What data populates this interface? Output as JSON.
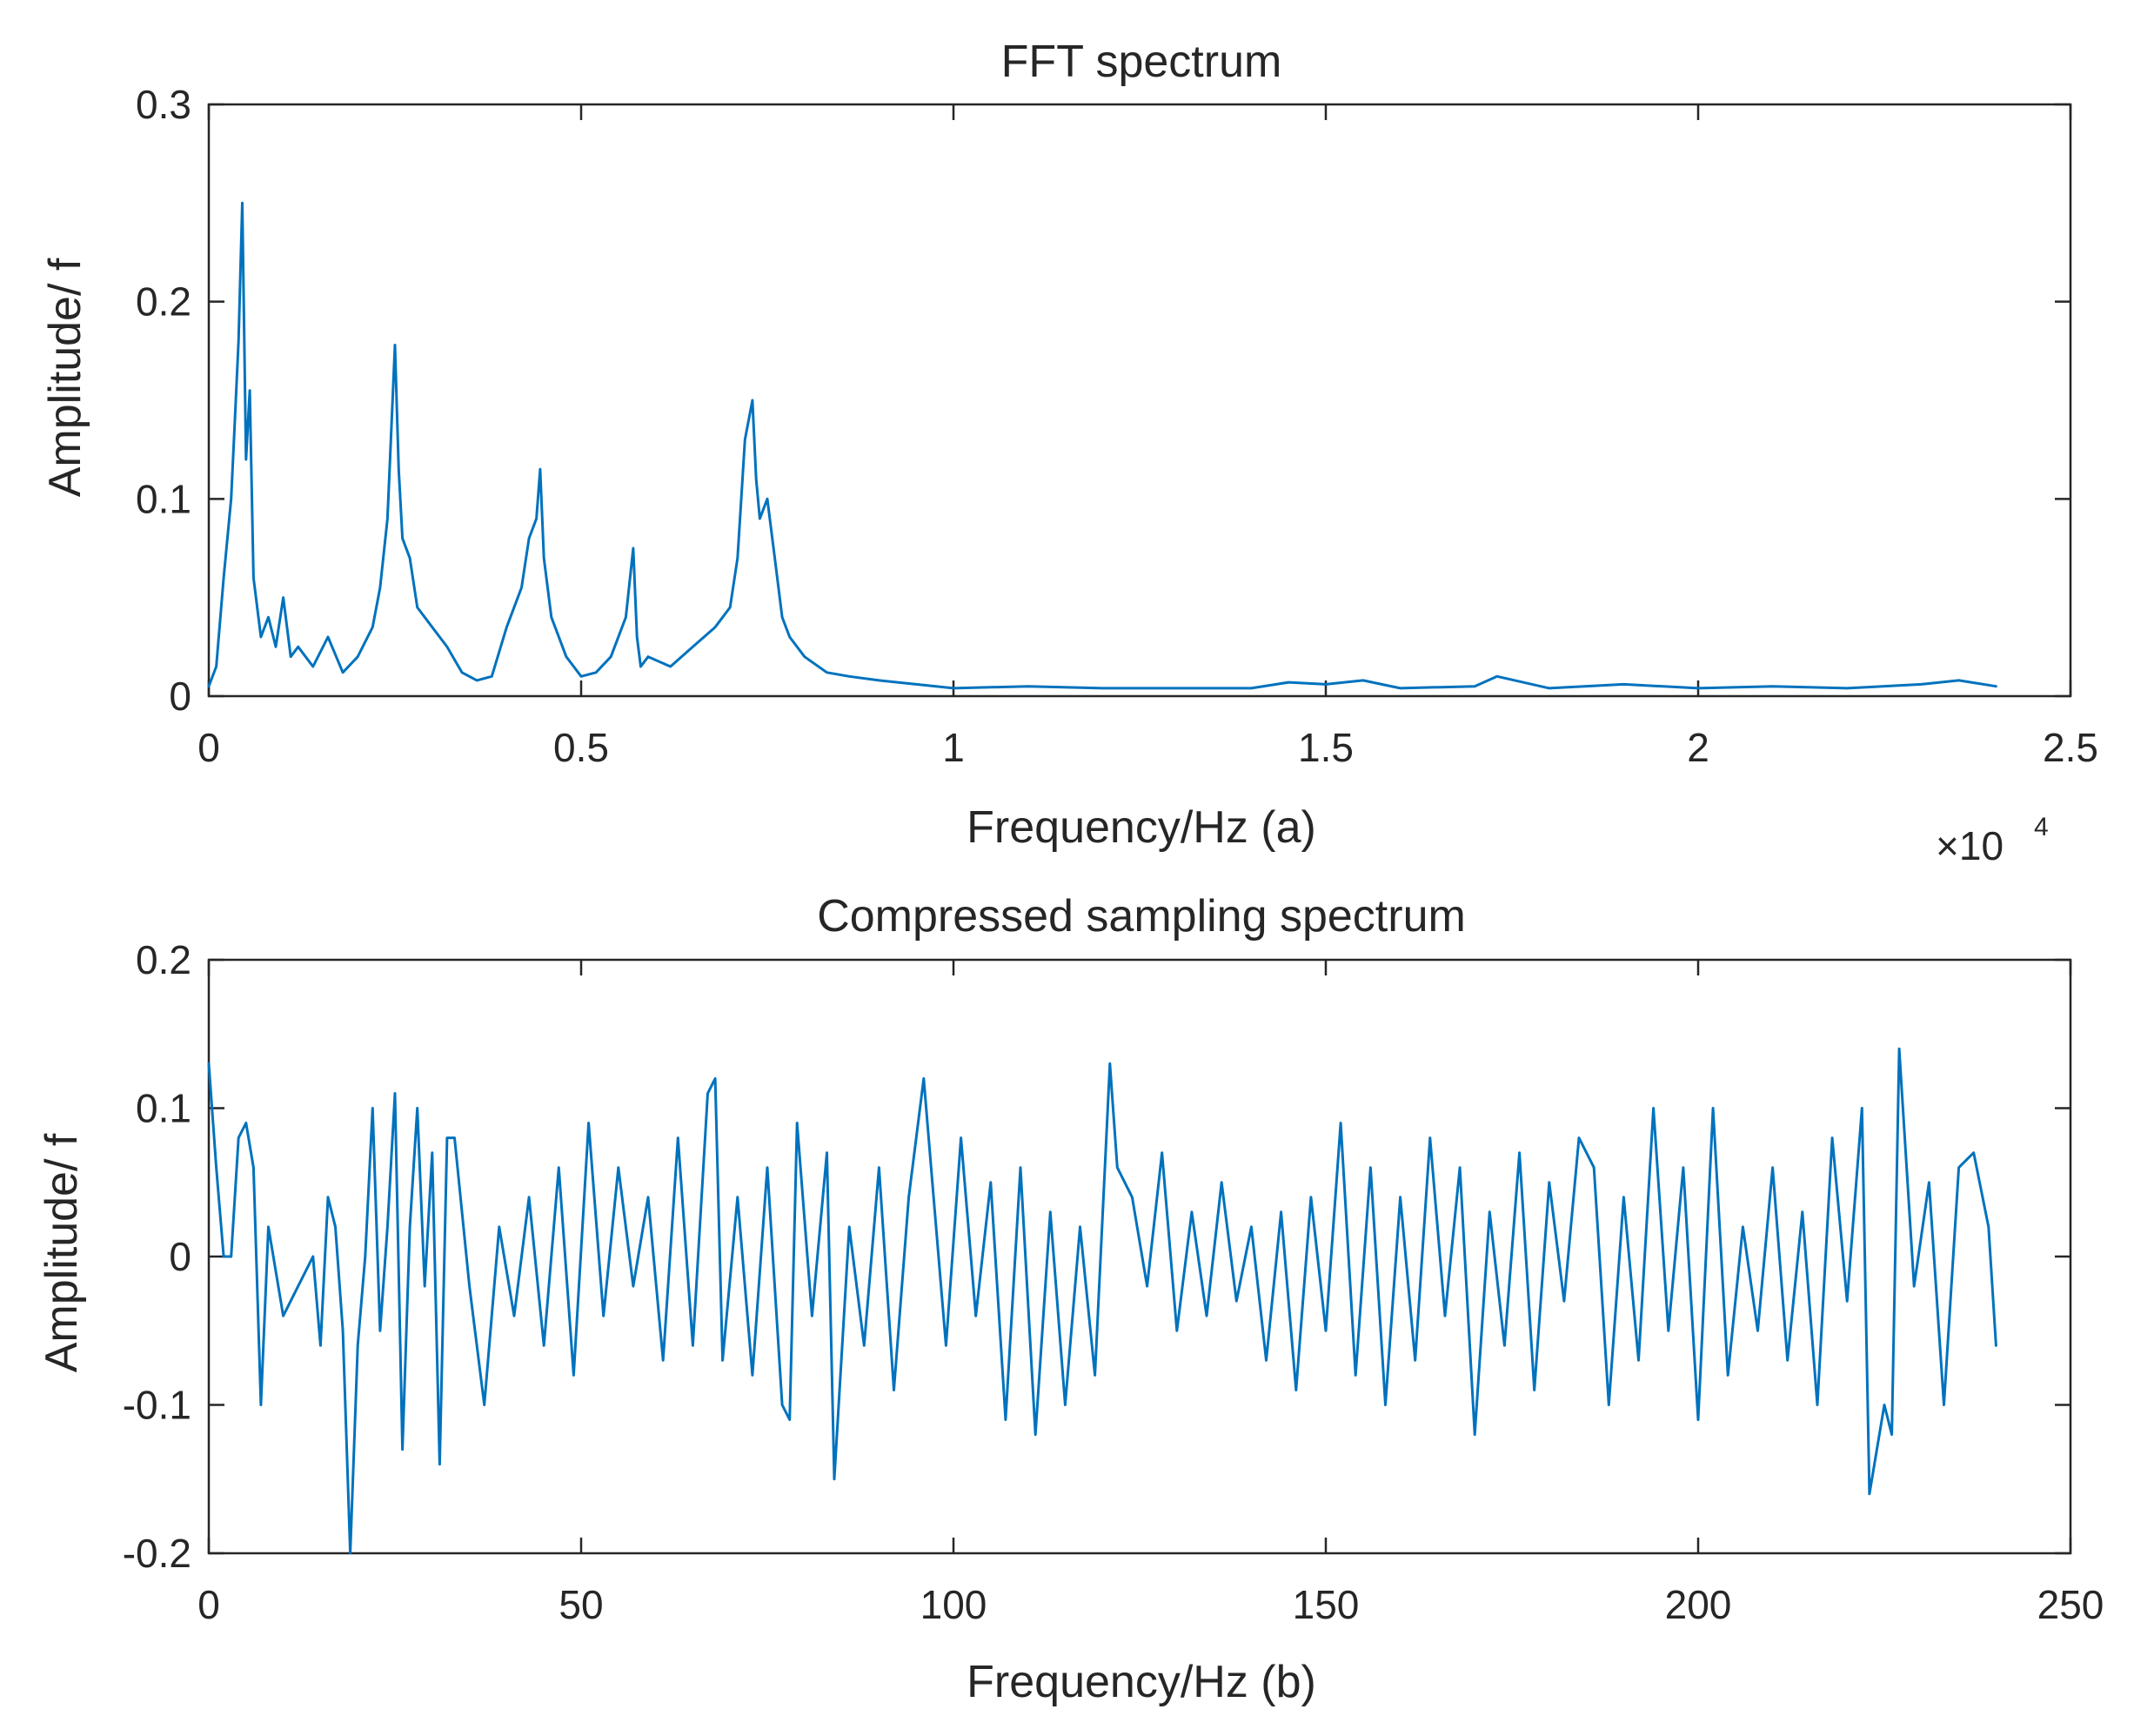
{
  "colors": {
    "line": "#0072BD",
    "axis": "#262626",
    "background": "#FFFFFF"
  },
  "chart_data": [
    {
      "type": "line",
      "title": "FFT spectrum",
      "xlabel": "Frequency/Hz (a)",
      "ylabel": "Amplitude/ f",
      "x_exponent_label": "×10",
      "x_exponent_power": "4",
      "x_scale": 10000,
      "xlim": [
        0,
        25000
      ],
      "ylim": [
        0,
        0.3
      ],
      "x_ticks": [
        0,
        5000,
        10000,
        15000,
        20000,
        25000
      ],
      "x_tick_labels": [
        "0",
        "0.5",
        "1",
        "1.5",
        "2",
        "2.5"
      ],
      "y_ticks": [
        0,
        0.1,
        0.2,
        0.3
      ],
      "y_tick_labels": [
        "0",
        "0.1",
        "0.2",
        "0.3"
      ],
      "grid": false,
      "series": [
        {
          "name": "FFT spectrum",
          "x": [
            0,
            100,
            200,
            300,
            350,
            400,
            450,
            500,
            550,
            600,
            700,
            800,
            900,
            1000,
            1100,
            1200,
            1400,
            1600,
            1800,
            2000,
            2200,
            2300,
            2400,
            2500,
            2550,
            2600,
            2700,
            2800,
            3000,
            3200,
            3400,
            3600,
            3800,
            4000,
            4200,
            4300,
            4400,
            4450,
            4500,
            4600,
            4800,
            5000,
            5200,
            5400,
            5600,
            5700,
            5750,
            5800,
            5900,
            6200,
            6500,
            6800,
            7000,
            7100,
            7200,
            7300,
            7350,
            7400,
            7500,
            7600,
            7700,
            7800,
            8000,
            8300,
            8600,
            9000,
            9500,
            10000,
            11000,
            12000,
            13000,
            14000,
            14500,
            15000,
            15500,
            16000,
            17000,
            17300,
            18000,
            19000,
            20000,
            21000,
            22000,
            23000,
            23500,
            24000
          ],
          "values": [
            0.005,
            0.015,
            0.06,
            0.1,
            0.14,
            0.18,
            0.25,
            0.12,
            0.155,
            0.06,
            0.03,
            0.04,
            0.025,
            0.05,
            0.02,
            0.025,
            0.015,
            0.03,
            0.012,
            0.02,
            0.035,
            0.055,
            0.09,
            0.178,
            0.115,
            0.08,
            0.07,
            0.045,
            0.035,
            0.025,
            0.012,
            0.008,
            0.01,
            0.035,
            0.055,
            0.08,
            0.09,
            0.115,
            0.07,
            0.04,
            0.02,
            0.01,
            0.012,
            0.02,
            0.04,
            0.075,
            0.03,
            0.015,
            0.02,
            0.015,
            0.025,
            0.035,
            0.045,
            0.07,
            0.13,
            0.15,
            0.11,
            0.09,
            0.1,
            0.07,
            0.04,
            0.03,
            0.02,
            0.012,
            0.01,
            0.008,
            0.006,
            0.004,
            0.005,
            0.004,
            0.004,
            0.004,
            0.007,
            0.006,
            0.008,
            0.004,
            0.005,
            0.01,
            0.004,
            0.006,
            0.004,
            0.005,
            0.004,
            0.006,
            0.008,
            0.005
          ]
        }
      ]
    },
    {
      "type": "line",
      "title": "Compressed sampling spectrum",
      "xlabel": "Frequency/Hz (b)",
      "ylabel": "Amplitude/ f",
      "xlim": [
        0,
        250
      ],
      "ylim": [
        -0.2,
        0.2
      ],
      "x_ticks": [
        0,
        50,
        100,
        150,
        200,
        250
      ],
      "x_tick_labels": [
        "0",
        "50",
        "100",
        "150",
        "200",
        "250"
      ],
      "y_ticks": [
        -0.2,
        -0.1,
        0,
        0.1,
        0.2
      ],
      "y_tick_labels": [
        "-0.2",
        "-0.1",
        "0",
        "0.1",
        "0.2"
      ],
      "grid": false,
      "series": [
        {
          "name": "Compressed sampling spectrum",
          "x": [
            0,
            1,
            2,
            3,
            4,
            5,
            6,
            7,
            8,
            10,
            12,
            14,
            15,
            16,
            17,
            18,
            19,
            20,
            21,
            22,
            23,
            24,
            25,
            26,
            27,
            28,
            29,
            30,
            31,
            32,
            33,
            35,
            37,
            39,
            41,
            43,
            45,
            47,
            49,
            51,
            53,
            55,
            57,
            59,
            61,
            63,
            65,
            67,
            68,
            69,
            71,
            73,
            75,
            77,
            78,
            79,
            81,
            83,
            84,
            86,
            88,
            90,
            92,
            94,
            96,
            97,
            99,
            101,
            103,
            105,
            107,
            109,
            111,
            113,
            115,
            117,
            119,
            121,
            122,
            124,
            126,
            128,
            130,
            132,
            134,
            136,
            138,
            140,
            142,
            144,
            146,
            148,
            150,
            152,
            154,
            156,
            158,
            160,
            162,
            164,
            166,
            168,
            170,
            172,
            174,
            176,
            178,
            180,
            182,
            184,
            186,
            188,
            190,
            192,
            194,
            196,
            198,
            200,
            202,
            204,
            206,
            208,
            210,
            212,
            214,
            216,
            218,
            220,
            222,
            223,
            225,
            226,
            227,
            229,
            231,
            233,
            235,
            237,
            239,
            240
          ],
          "values": [
            0.13,
            0.06,
            0.0,
            0.0,
            0.08,
            0.09,
            0.06,
            -0.1,
            0.02,
            -0.04,
            -0.02,
            0.0,
            -0.06,
            0.04,
            0.02,
            -0.05,
            -0.21,
            -0.06,
            0.0,
            0.1,
            -0.05,
            0.02,
            0.11,
            -0.13,
            0.02,
            0.1,
            -0.02,
            0.07,
            -0.14,
            0.08,
            0.08,
            -0.02,
            -0.1,
            0.02,
            -0.04,
            0.04,
            -0.06,
            0.06,
            -0.08,
            0.09,
            -0.04,
            0.06,
            -0.02,
            0.04,
            -0.07,
            0.08,
            -0.06,
            0.11,
            0.12,
            -0.07,
            0.04,
            -0.08,
            0.06,
            -0.1,
            -0.11,
            0.09,
            -0.04,
            0.07,
            -0.15,
            0.02,
            -0.06,
            0.06,
            -0.09,
            0.04,
            0.12,
            0.06,
            -0.06,
            0.08,
            -0.04,
            0.05,
            -0.11,
            0.06,
            -0.12,
            0.03,
            -0.1,
            0.02,
            -0.08,
            0.13,
            0.06,
            0.04,
            -0.02,
            0.07,
            -0.05,
            0.03,
            -0.04,
            0.05,
            -0.03,
            0.02,
            -0.07,
            0.03,
            -0.09,
            0.04,
            -0.05,
            0.09,
            -0.08,
            0.06,
            -0.1,
            0.04,
            -0.07,
            0.08,
            -0.04,
            0.06,
            -0.12,
            0.03,
            -0.06,
            0.07,
            -0.09,
            0.05,
            -0.03,
            0.08,
            0.06,
            -0.1,
            0.04,
            -0.07,
            0.1,
            -0.05,
            0.06,
            -0.11,
            0.1,
            -0.08,
            0.02,
            -0.05,
            0.06,
            -0.07,
            0.03,
            -0.1,
            0.08,
            -0.03,
            0.1,
            -0.16,
            -0.1,
            -0.12,
            0.14,
            -0.02,
            0.05,
            -0.1,
            0.06,
            0.07,
            0.02,
            -0.06
          ]
        }
      ]
    }
  ]
}
